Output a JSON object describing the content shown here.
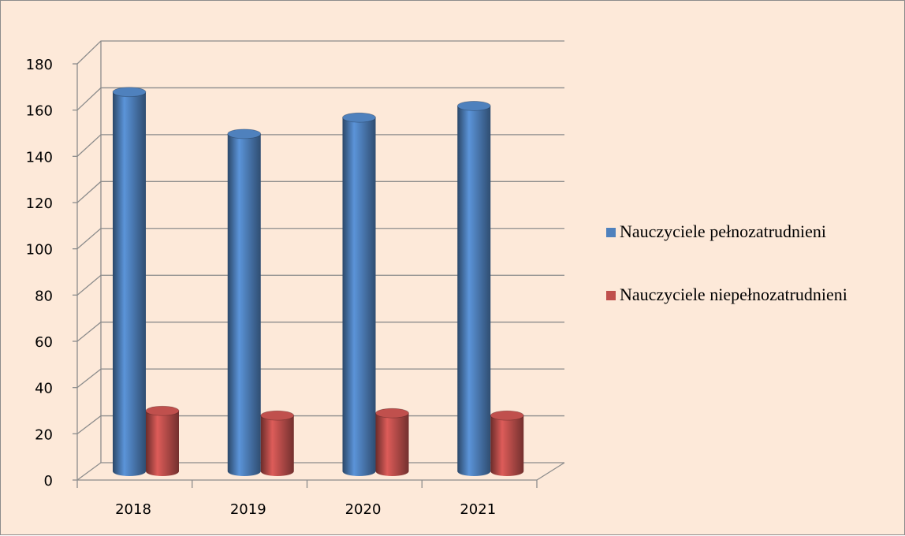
{
  "chart_data": {
    "type": "bar",
    "categories": [
      "2018",
      "2019",
      "2020",
      "2021"
    ],
    "series": [
      {
        "name": "Nauczyciele pełnozatrudnieni",
        "color": "#4f81bd",
        "values": [
          163,
          145,
          152,
          157
        ]
      },
      {
        "name": "Nauczyciele niepełnozatrudnieni",
        "color": "#c0504d",
        "values": [
          26,
          24,
          25,
          24
        ]
      }
    ],
    "ylim": [
      0,
      180
    ],
    "yticks": [
      0,
      20,
      40,
      60,
      80,
      100,
      120,
      140,
      160,
      180
    ],
    "grid": true,
    "legend": "right",
    "style": "3d-cylinder"
  }
}
